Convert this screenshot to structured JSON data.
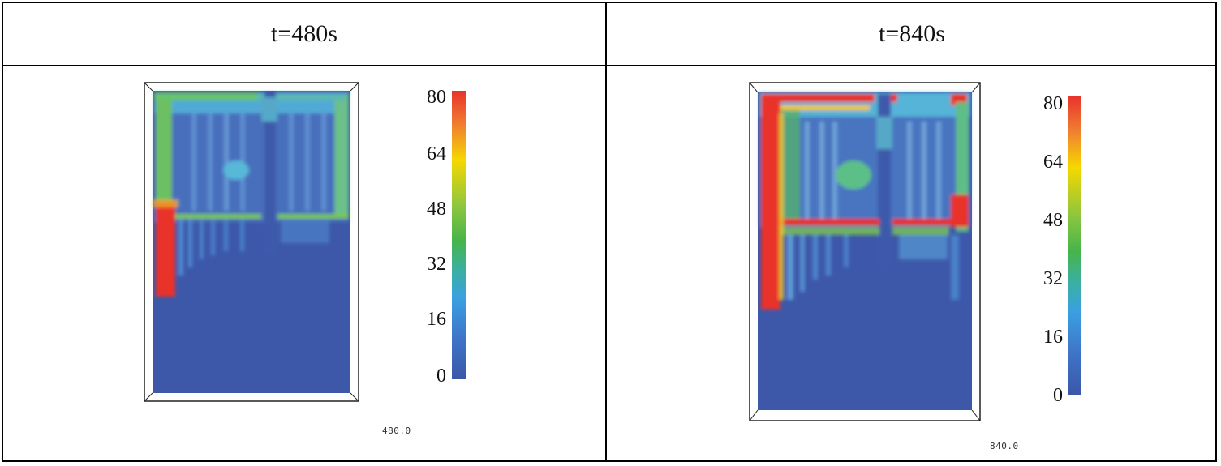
{
  "panels": [
    {
      "header": "t=480s",
      "time_stamp": "480.0",
      "colorbar": {
        "ticks": [
          "80",
          "64",
          "48",
          "32",
          "16",
          "0"
        ],
        "range": [
          0,
          80
        ]
      }
    },
    {
      "header": "t=840s",
      "time_stamp": "840.0",
      "colorbar": {
        "ticks": [
          "80",
          "64",
          "48",
          "32",
          "16",
          "0"
        ],
        "range": [
          0,
          80
        ]
      }
    }
  ],
  "colors": {
    "low": "#3b56a8",
    "cool": "#3aa0e0",
    "mid": "#46b44a",
    "warm": "#f5d800",
    "high": "#e8322c"
  }
}
